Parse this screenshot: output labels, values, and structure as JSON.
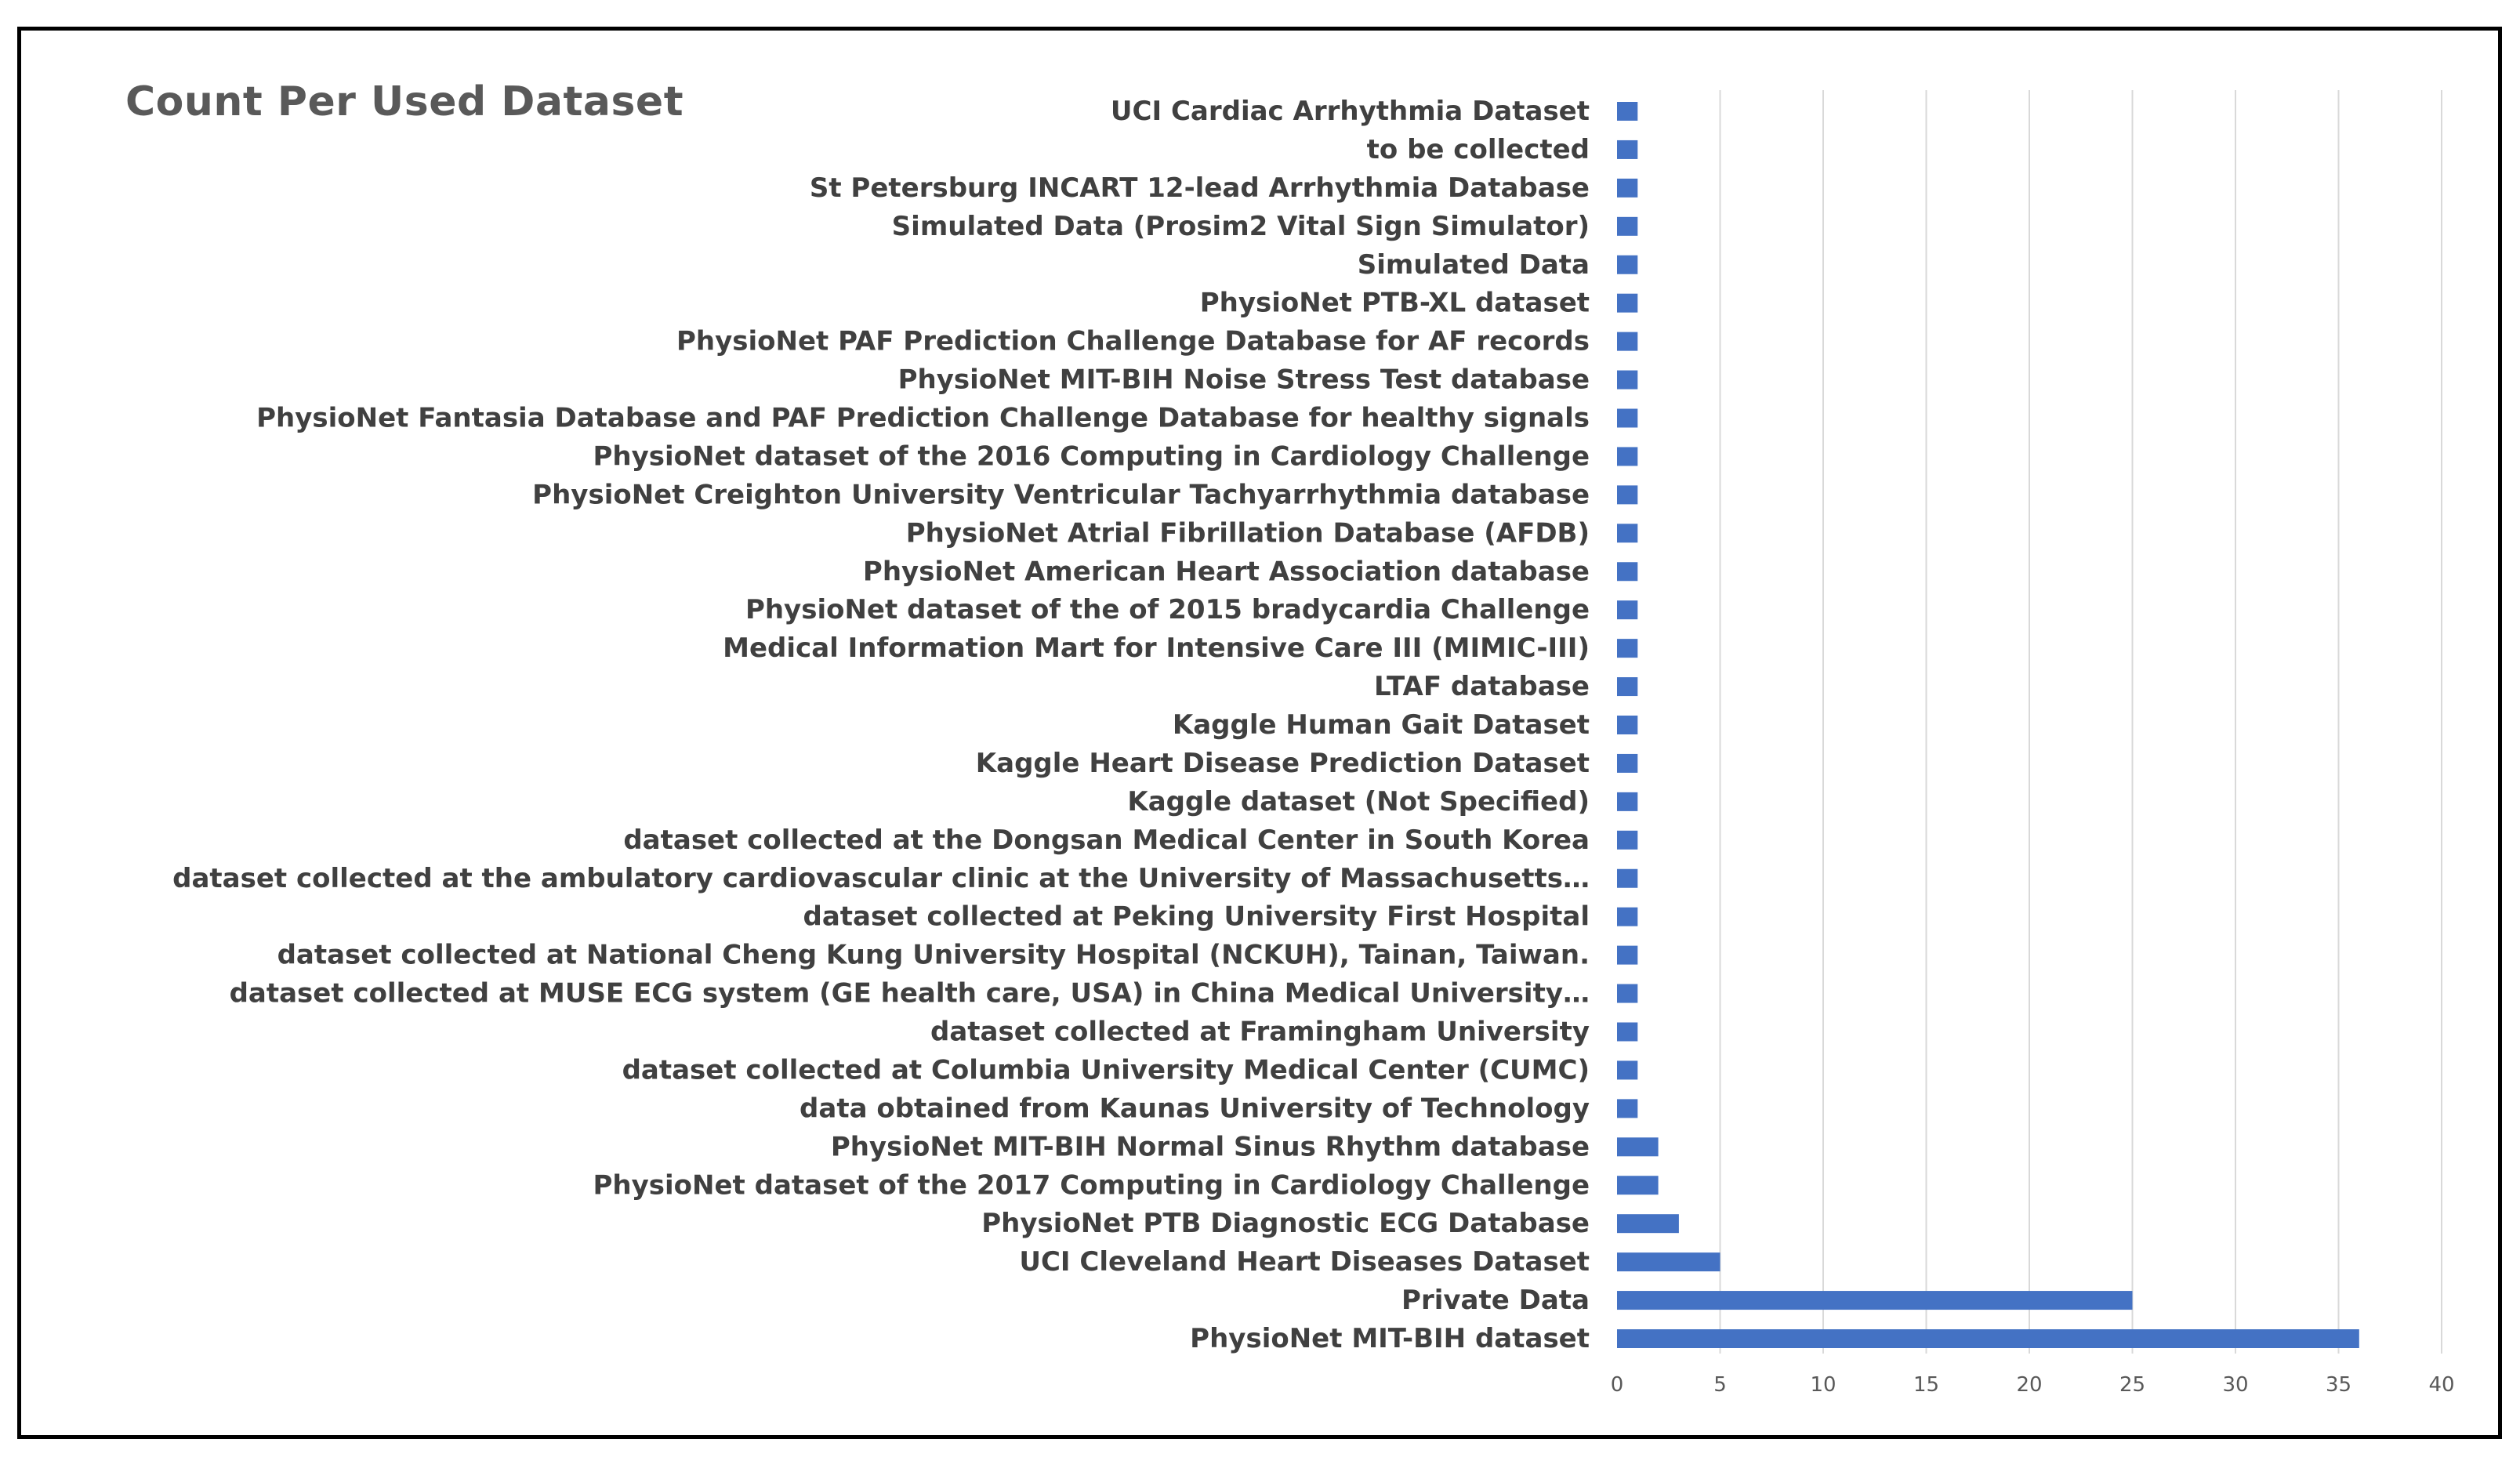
{
  "chart_data": {
    "type": "bar",
    "orientation": "horizontal",
    "title": "Count Per Used Dataset",
    "xlabel": "",
    "ylabel": "",
    "xlim": [
      0,
      40
    ],
    "x_ticks": [
      0,
      5,
      10,
      15,
      20,
      25,
      30,
      35,
      40
    ],
    "grid": true,
    "legend": "none",
    "bar_color": "#4472C4",
    "categories": [
      "UCI Cardiac Arrhythmia Dataset",
      "to be collected",
      "St Petersburg INCART 12-lead Arrhythmia Database",
      "Simulated Data (Prosim2 Vital Sign Simulator)",
      "Simulated Data",
      "PhysioNet PTB-XL dataset",
      "PhysioNet PAF Prediction Challenge Database for AF records",
      "PhysioNet MIT-BIH Noise Stress Test database",
      "PhysioNet Fantasia Database and PAF Prediction Challenge Database for healthy signals",
      "PhysioNet dataset of the 2016 Computing in Cardiology Challenge",
      "PhysioNet Creighton University Ventricular Tachyarrhythmia database",
      "PhysioNet Atrial Fibrillation Database (AFDB)",
      "PhysioNet American Heart Association database",
      "PhysioNet  dataset of the of 2015 bradycardia Challenge",
      "Medical Information Mart for Intensive Care III (MIMIC-III)",
      "LTAF database",
      "Kaggle Human Gait Dataset",
      "Kaggle Heart Disease Prediction Dataset",
      "Kaggle dataset (Not Specified)",
      "dataset collected at the Dongsan Medical Center in South Korea",
      "dataset collected at the ambulatory cardiovascular clinic at the University of Massachusetts…",
      "dataset collected at Peking University First Hospital",
      "dataset collected at National Cheng Kung University Hospital (NCKUH), Tainan, Taiwan.",
      "dataset collected at MUSE ECG system (GE health care, USA) in China Medical University…",
      "dataset collected at Framingham University",
      "dataset collected at Columbia University Medical Center (CUMC)",
      "data obtained from Kaunas University of Technology",
      "PhysioNet MIT-BIH Normal Sinus Rhythm database",
      "PhysioNet dataset of the 2017 Computing in Cardiology Challenge",
      "PhysioNet PTB Diagnostic ECG Database",
      "UCI Cleveland Heart Diseases Dataset",
      "Private Data",
      "PhysioNet MIT-BIH dataset"
    ],
    "values": [
      1,
      1,
      1,
      1,
      1,
      1,
      1,
      1,
      1,
      1,
      1,
      1,
      1,
      1,
      1,
      1,
      1,
      1,
      1,
      1,
      1,
      1,
      1,
      1,
      1,
      1,
      1,
      2,
      2,
      3,
      5,
      25,
      36
    ]
  }
}
